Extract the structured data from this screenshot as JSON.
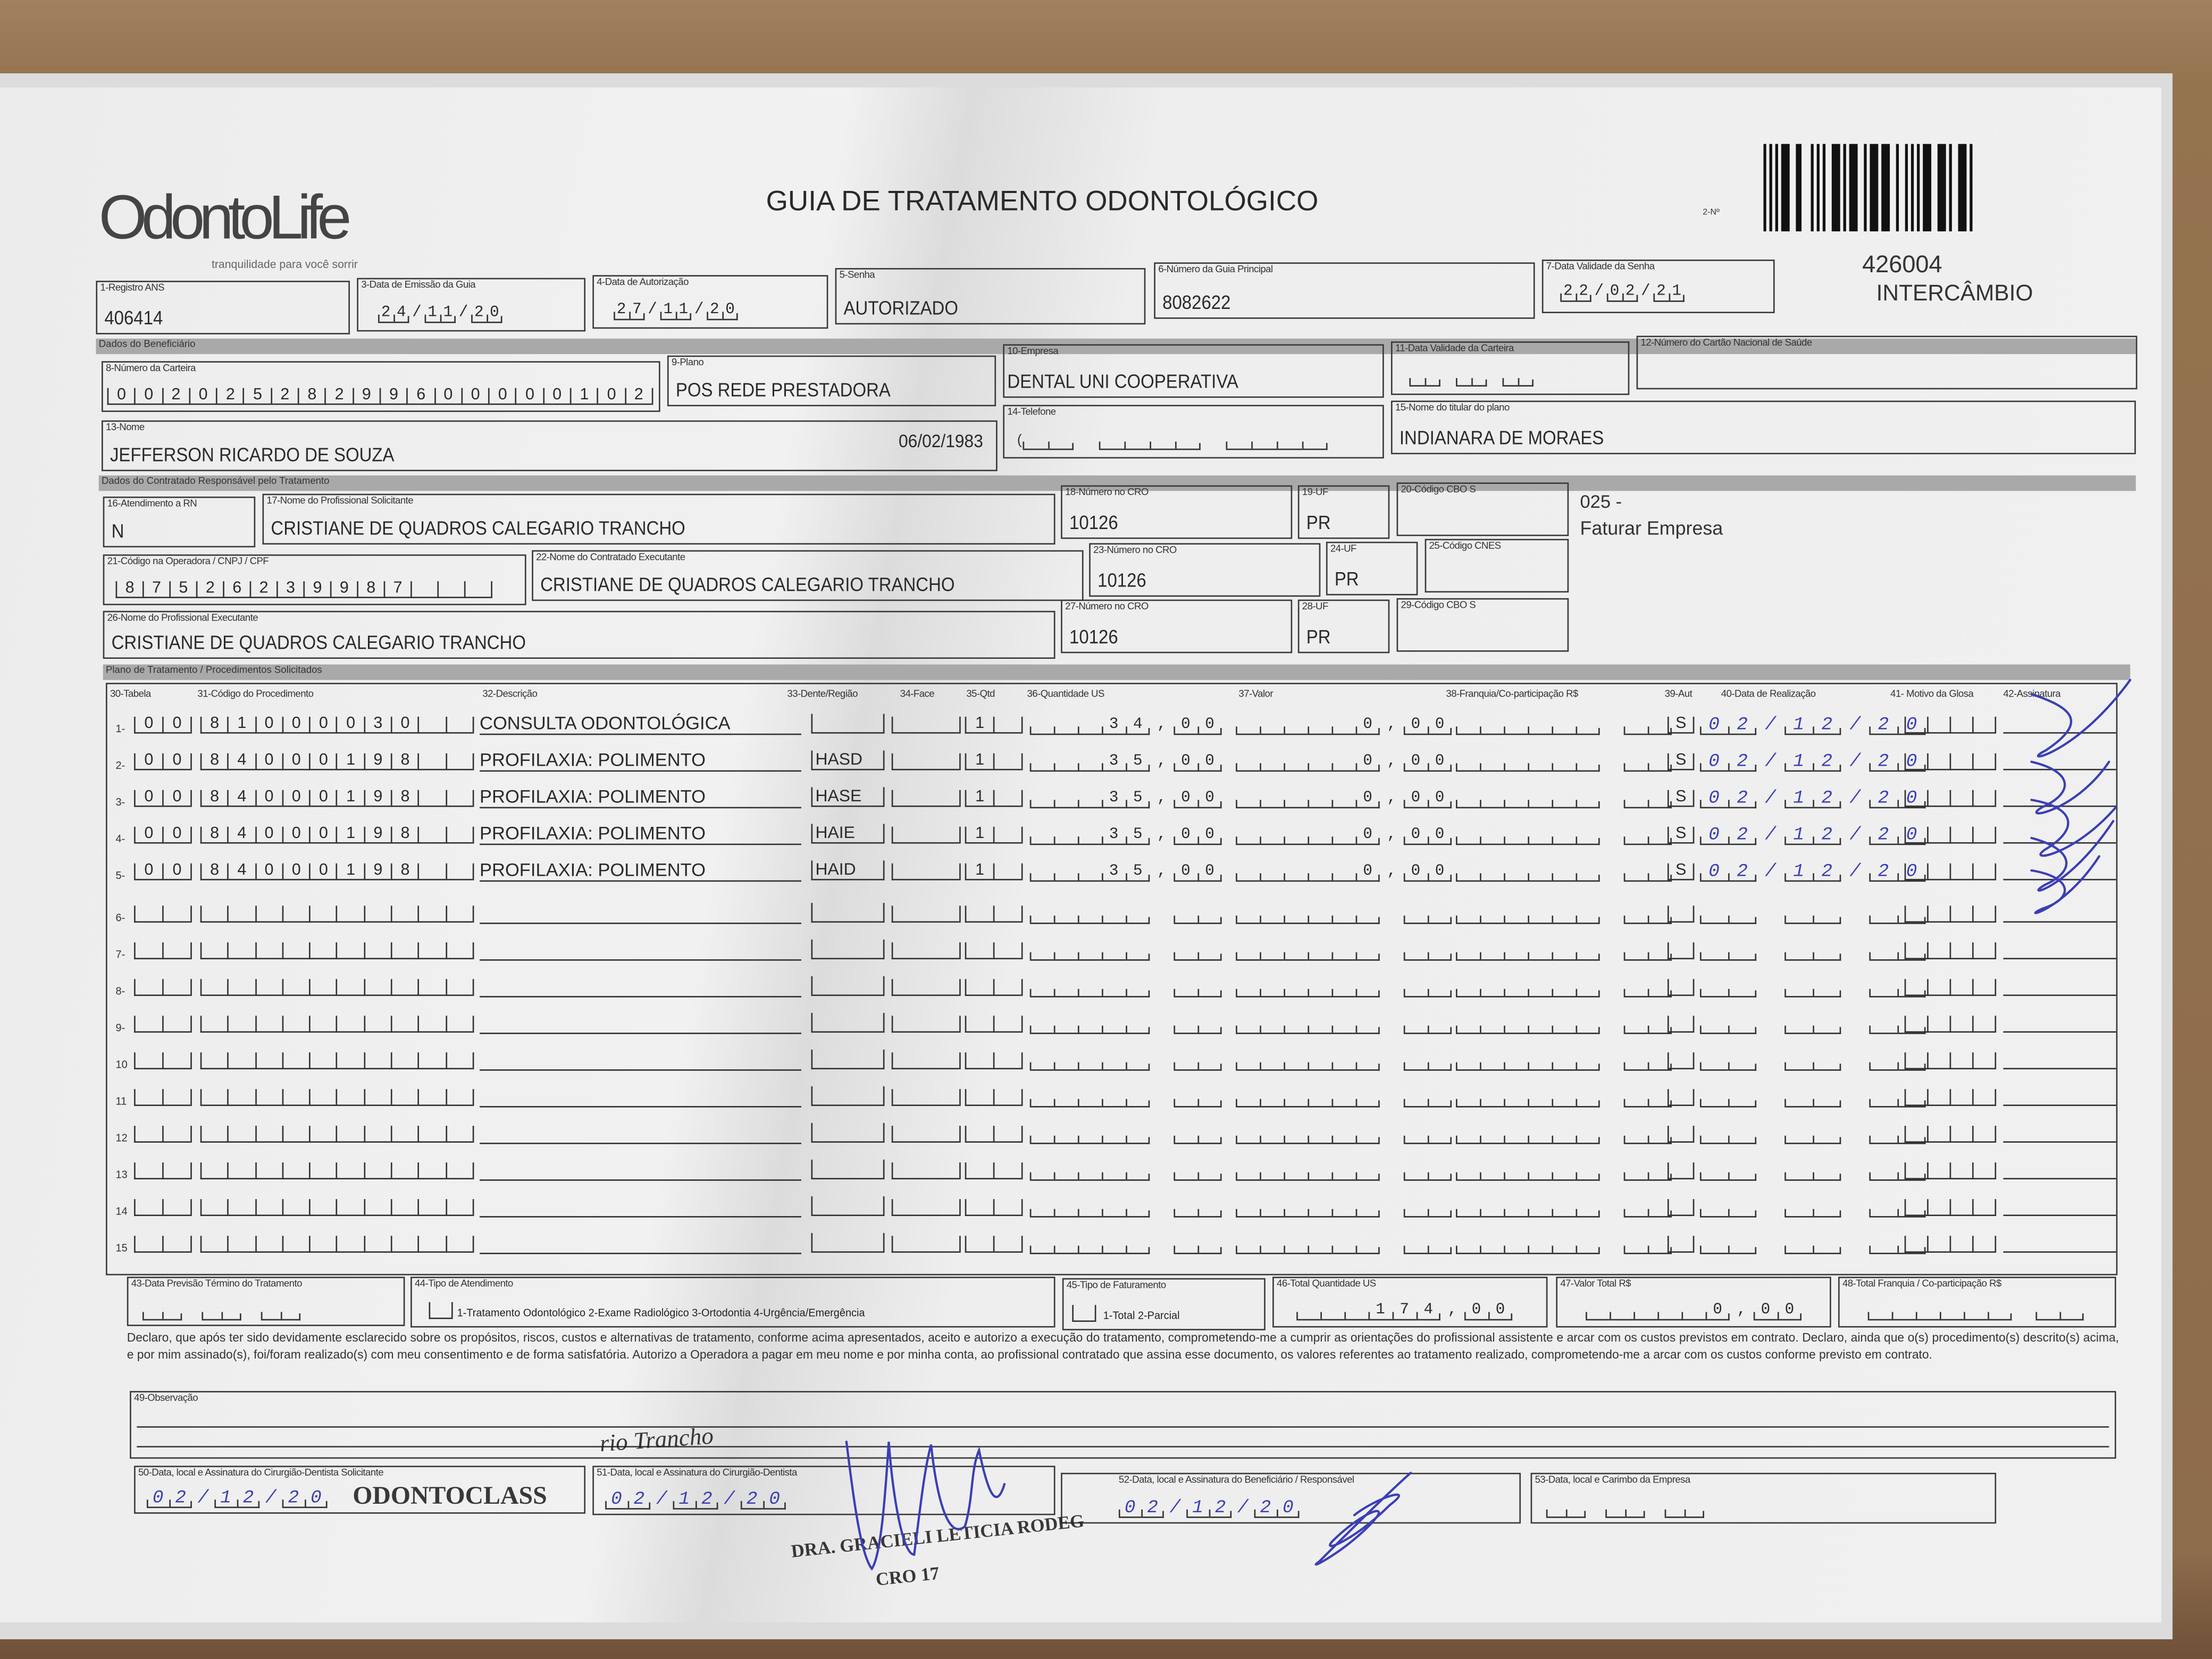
{
  "header": {
    "logo": "OdontoLife",
    "logo_tagline": "tranquilidade para você sorrir",
    "title": "GUIA DE TRATAMENTO ODONTOLÓGICO",
    "guide_number_label": "2-Nº",
    "code": "426004",
    "exchange": "INTERCÂMBIO",
    "billing_code": "025 -",
    "billing_label": "Faturar Empresa"
  },
  "sections": {
    "beneficiary": "Dados do Beneficiário",
    "contractor": "Dados do Contratado Responsável pelo Tratamento",
    "plan": "Plano de Tratamento / Procedimentos Solicitados"
  },
  "fields": {
    "f1": {
      "label": "1-Registro ANS",
      "value": "406414"
    },
    "f3": {
      "label": "3-Data de Emissão da Guia",
      "value": "24/11/20"
    },
    "f4": {
      "label": "4-Data de Autorização",
      "value": "27/11/20"
    },
    "f5": {
      "label": "5-Senha",
      "value": "AUTORIZADO"
    },
    "f6": {
      "label": "6-Número da Guia Principal",
      "value": "8082622"
    },
    "f7": {
      "label": "7-Data Validade da Senha",
      "value": "22/02/21"
    },
    "f8": {
      "label": "8-Número da Carteira",
      "value": "00202528299600000102"
    },
    "f9": {
      "label": "9-Plano",
      "value": "POS REDE PRESTADORA"
    },
    "f10": {
      "label": "10-Empresa",
      "value": "DENTAL UNI  COOPERATIVA"
    },
    "f11": {
      "label": "11-Data Validade da Carteira",
      "value": ""
    },
    "f12": {
      "label": "12-Número do Cartão Nacional de Saúde",
      "value": ""
    },
    "f13": {
      "label": "13-Nome",
      "value": "JEFFERSON RICARDO DE SOUZA",
      "birth_date": "06/02/1983"
    },
    "f14": {
      "label": "14-Telefone",
      "value": ""
    },
    "f15": {
      "label": "15-Nome do titular do plano",
      "value": "INDIANARA DE MORAES"
    },
    "f16": {
      "label": "16-Atendimento a RN",
      "value": "N"
    },
    "f17": {
      "label": "17-Nome do Profissional Solicitante",
      "value": "CRISTIANE DE QUADROS CALEGARIO TRANCHO"
    },
    "f18": {
      "label": "18-Número no CRO",
      "value": "10126"
    },
    "f19": {
      "label": "19-UF",
      "value": "PR"
    },
    "f20": {
      "label": "20-Código CBO S",
      "value": ""
    },
    "f21": {
      "label": "21-Código na Operadora / CNPJ / CPF",
      "value": "87526239987"
    },
    "f22": {
      "label": "22-Nome do Contratado Executante",
      "value": "CRISTIANE DE QUADROS CALEGARIO TRANCHO"
    },
    "f23": {
      "label": "23-Número no CRO",
      "value": "10126"
    },
    "f24": {
      "label": "24-UF",
      "value": "PR"
    },
    "f25": {
      "label": "25-Código CNES",
      "value": ""
    },
    "f26": {
      "label": "26-Nome do Profissional Executante",
      "value": "CRISTIANE DE QUADROS CALEGARIO TRANCHO"
    },
    "f27": {
      "label": "27-Número no CRO",
      "value": "10126"
    },
    "f28": {
      "label": "28-UF",
      "value": "PR"
    },
    "f29": {
      "label": "29-Código CBO S",
      "value": ""
    },
    "f43": {
      "label": "43-Data Previsão Término do Tratamento",
      "value": ""
    },
    "f44": {
      "label": "44-Tipo de Atendimento",
      "value": "",
      "options": "1-Tratamento Odontológico  2-Exame Radiológico  3-Ortodontia  4-Urgência/Emergência"
    },
    "f45": {
      "label": "45-Tipo de Faturamento",
      "value": "",
      "options": "1-Total  2-Parcial"
    },
    "f46": {
      "label": "46-Total Quantidade US",
      "value": "174,00"
    },
    "f47": {
      "label": "47-Valor Total R$",
      "value": "0,00"
    },
    "f48": {
      "label": "48-Total Franquia / Co-participação R$",
      "value": ""
    },
    "f49": {
      "label": "49-Observação",
      "value": ""
    },
    "f50": {
      "label": "50-Data, local e Assinatura do Cirurgião-Dentista Solicitante",
      "value": "02/12/20"
    },
    "f51": {
      "label": "51-Data, local e Assinatura do Cirurgião-Dentista",
      "value": "02/12/20"
    },
    "f52": {
      "label": "52-Data, local e Assinatura do Beneficiário / Responsável",
      "value": "02/12/20"
    },
    "f53": {
      "label": "53-Data, local e Carimbo da Empresa",
      "value": ""
    }
  },
  "table": {
    "headers": [
      "30-Tabela",
      "31-Código do Procedimento",
      "32-Descrição",
      "33-Dente/Região",
      "34-Face",
      "35-Qtd",
      "36-Quantidade US",
      "37-Valor",
      "38-Franquia/Co-participação R$",
      "39-Aut",
      "40-Data de Realização",
      "41- Motivo da Glosa",
      "42-Assinatura"
    ],
    "rows": [
      {
        "n": "1-",
        "tabela": "00",
        "codigo": "81000030",
        "descricao": "CONSULTA ODONTOLÓGICA",
        "dente": "",
        "face": "",
        "qtd": "1",
        "qtd_us": "34,00",
        "valor": "0,00",
        "franquia": "",
        "aut": "S",
        "data": "02/12/20",
        "glosa": ""
      },
      {
        "n": "2-",
        "tabela": "00",
        "codigo": "84000198",
        "descricao": "PROFILAXIA: POLIMENTO",
        "dente": "HASD",
        "face": "",
        "qtd": "1",
        "qtd_us": "35,00",
        "valor": "0,00",
        "franquia": "",
        "aut": "S",
        "data": "02/12/20",
        "glosa": ""
      },
      {
        "n": "3-",
        "tabela": "00",
        "codigo": "84000198",
        "descricao": "PROFILAXIA: POLIMENTO",
        "dente": "HASE",
        "face": "",
        "qtd": "1",
        "qtd_us": "35,00",
        "valor": "0,00",
        "franquia": "",
        "aut": "S",
        "data": "02/12/20",
        "glosa": ""
      },
      {
        "n": "4-",
        "tabela": "00",
        "codigo": "84000198",
        "descricao": "PROFILAXIA: POLIMENTO",
        "dente": "HAIE",
        "face": "",
        "qtd": "1",
        "qtd_us": "35,00",
        "valor": "0,00",
        "franquia": "",
        "aut": "S",
        "data": "02/12/20",
        "glosa": ""
      },
      {
        "n": "5-",
        "tabela": "00",
        "codigo": "84000198",
        "descricao": "PROFILAXIA: POLIMENTO",
        "dente": "HAID",
        "face": "",
        "qtd": "1",
        "qtd_us": "35,00",
        "valor": "0,00",
        "franquia": "",
        "aut": "S",
        "data": "02/12/20",
        "glosa": ""
      },
      {
        "n": "6-"
      },
      {
        "n": "7-"
      },
      {
        "n": "8-"
      },
      {
        "n": "9-"
      },
      {
        "n": "10"
      },
      {
        "n": "11"
      },
      {
        "n": "12"
      },
      {
        "n": "13"
      },
      {
        "n": "14"
      },
      {
        "n": "15"
      }
    ]
  },
  "declaration": "Declaro, que após ter sido devidamente esclarecido sobre os propósitos, riscos, custos e alternativas de tratamento, conforme acima apresentados, aceito e autorizo a execução do tratamento, comprometendo-me a cumprir as orientações do profissional assistente e arcar com os custos previstos em contrato. Declaro, ainda que o(s) procedimento(s) descrito(s) acima, e por mim assinado(s), foi/foram realizado(s) com meu consentimento e de forma satisfatória. Autorizo a Operadora a pagar em meu nome e por minha conta, ao profissional contratado que assina esse documento, os valores referentes ao tratamento realizado, comprometendo-me a arcar com os custos conforme previsto em contrato.",
  "stamps": {
    "clinic": "ODONTOCLASS",
    "dentist": "DRA. GRACIELI LETICIA RODEG",
    "dentist_cro": "CRO 17",
    "observation_stamp": "rio Trancho"
  },
  "colors": {
    "ink_blue": "#3b3fb5",
    "form_gray": "#a9a9a9",
    "paper": "#eeeeee",
    "wood": "#8a6a4b"
  }
}
